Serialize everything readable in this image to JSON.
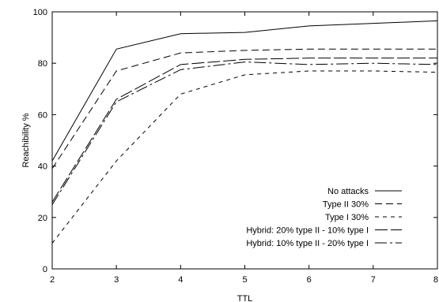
{
  "chart_data": {
    "type": "line",
    "xlabel": "TTL",
    "ylabel": "Reachibility %",
    "x": [
      2,
      3,
      4,
      5,
      6,
      7,
      8
    ],
    "xlim": [
      2,
      8
    ],
    "ylim": [
      0,
      100
    ],
    "xticks": [
      "2",
      "3",
      "4",
      "5",
      "6",
      "7",
      "8"
    ],
    "yticks": [
      "0",
      "20",
      "40",
      "60",
      "80",
      "100"
    ],
    "grid": false,
    "legend_position": "bottom-right",
    "series": [
      {
        "name": "No attacks",
        "style": "solid",
        "values": [
          42,
          85.5,
          91.5,
          92,
          94.5,
          95.5,
          96.5
        ]
      },
      {
        "name": "Type II 30%",
        "style": "dash",
        "values": [
          39,
          77,
          84,
          85,
          85.5,
          85.5,
          85.5
        ]
      },
      {
        "name": "Type I 30%",
        "style": "shortdash",
        "values": [
          10,
          42,
          68,
          75.5,
          77,
          77,
          76.5
        ]
      },
      {
        "name": "Hybrid: 20% type II - 10% type I",
        "style": "longdash",
        "values": [
          26,
          66,
          79.5,
          81.5,
          82,
          82,
          82
        ]
      },
      {
        "name": "Hybrid: 10% type II - 20% type I",
        "style": "dashdot",
        "values": [
          25,
          65,
          77.5,
          80.5,
          79.5,
          80,
          79.5
        ]
      }
    ]
  }
}
